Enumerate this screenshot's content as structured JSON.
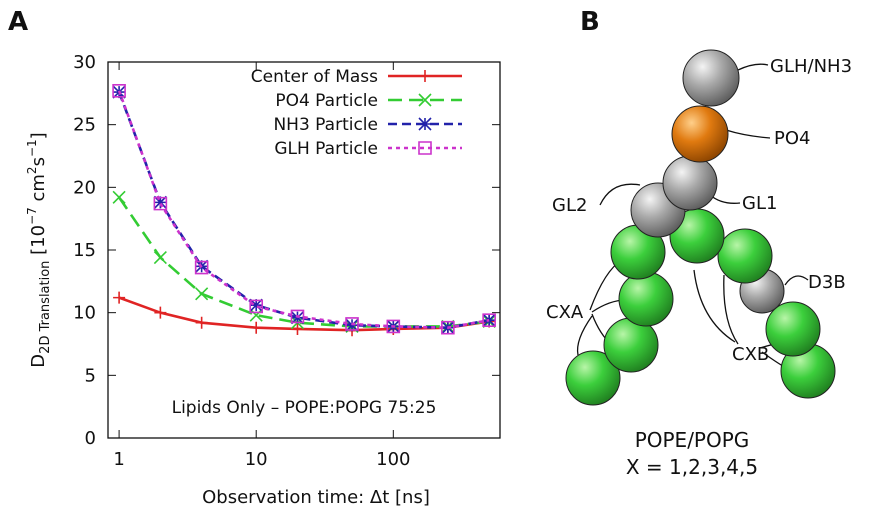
{
  "panel_labels": [
    "A",
    "B"
  ],
  "chart_data": {
    "type": "line",
    "x_label": "Observation time: Δt [ns]",
    "y_label": [
      "D",
      "2D Translation",
      " [10",
      "−7",
      " cm",
      "2",
      "s",
      "−1",
      "]"
    ],
    "annotation": "Lipids Only – POPE:POPG 75:25",
    "x": [
      1,
      2,
      4,
      10,
      20,
      50,
      100,
      250,
      500
    ],
    "xlim": [
      0.83,
      600
    ],
    "xticks": [
      1,
      10,
      100
    ],
    "x_scale": "log",
    "ylim": [
      0,
      30
    ],
    "yticks": [
      0,
      5,
      10,
      15,
      20,
      25,
      30
    ],
    "legend": "top-right",
    "series": [
      {
        "name": "Center of Mass",
        "color": "#e02424",
        "marker": "plus",
        "dash": "solid",
        "values": [
          11.2,
          10.0,
          9.2,
          8.8,
          8.7,
          8.6,
          8.7,
          8.8,
          9.3
        ]
      },
      {
        "name": "PO4 Particle",
        "color": "#33cc33",
        "marker": "cross",
        "dash": "long",
        "values": [
          19.2,
          14.4,
          11.5,
          9.8,
          9.2,
          8.9,
          8.9,
          8.9,
          9.3
        ]
      },
      {
        "name": "NH3 Particle",
        "color": "#2222aa",
        "marker": "star",
        "dash": "medium",
        "values": [
          27.6,
          18.8,
          13.7,
          10.6,
          9.6,
          9.0,
          8.9,
          8.8,
          9.4
        ]
      },
      {
        "name": "GLH Particle",
        "color": "#cc33cc",
        "marker": "square",
        "dash": "short",
        "values": [
          27.7,
          18.7,
          13.6,
          10.5,
          9.7,
          9.1,
          8.9,
          8.8,
          9.4
        ]
      }
    ]
  },
  "diagram": {
    "labels": [
      "GLH/NH3",
      "PO4",
      "GL2",
      "GL1",
      "D3B",
      "CXA",
      "CXB"
    ],
    "caption": [
      "POPE/POPG",
      "X = 1,2,3,4,5"
    ]
  }
}
